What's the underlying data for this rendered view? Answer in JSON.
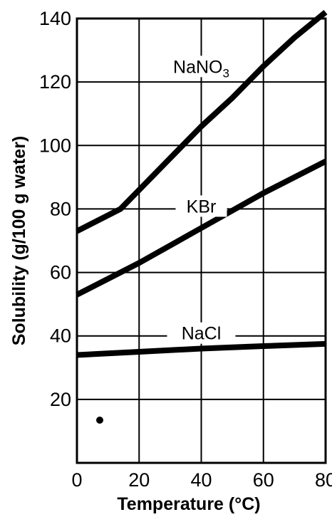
{
  "chart_data": {
    "type": "line",
    "xlabel": "Temperature (°C)",
    "ylabel": "Solubility (g/100 g water)",
    "xlim": [
      0,
      80
    ],
    "ylim": [
      0,
      140
    ],
    "x_ticks": [
      "0",
      "20",
      "40",
      "60",
      "80"
    ],
    "y_ticks": [
      "20",
      "40",
      "60",
      "80",
      "100",
      "120",
      "140"
    ],
    "grid": true,
    "series": [
      {
        "name": "NaNO3",
        "label_main": "NaNO",
        "label_sub": "3",
        "points": [
          [
            0,
            73
          ],
          [
            14,
            80
          ],
          [
            20,
            86
          ],
          [
            30,
            96
          ],
          [
            40,
            106
          ],
          [
            50,
            115
          ],
          [
            60,
            125
          ],
          [
            70,
            134
          ],
          [
            80,
            142
          ]
        ]
      },
      {
        "name": "KBr",
        "label_main": "KBr",
        "points": [
          [
            0,
            53
          ],
          [
            20,
            63
          ],
          [
            40,
            74
          ],
          [
            60,
            85
          ],
          [
            80,
            95
          ]
        ]
      },
      {
        "name": "NaCl",
        "label_main": "NaCl",
        "points": [
          [
            0,
            34
          ],
          [
            20,
            35
          ],
          [
            40,
            36
          ],
          [
            60,
            36.8
          ],
          [
            80,
            37.5
          ]
        ]
      }
    ]
  }
}
